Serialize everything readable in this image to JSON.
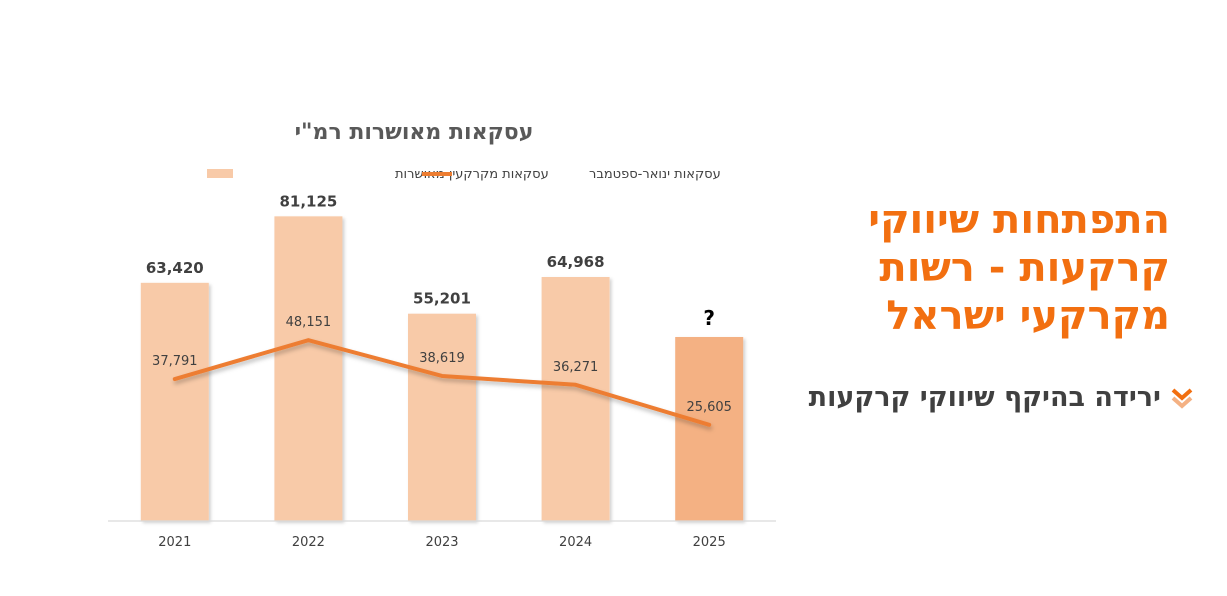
{
  "chart_data": {
    "type": "bar",
    "title": "עסקאות מאושרות רמ\"י",
    "categories": [
      "2021",
      "2022",
      "2023",
      "2024",
      "2025"
    ],
    "series": [
      {
        "name": "עסקאות מקרקעין מאושרות",
        "type": "bar",
        "values": [
          63420,
          81125,
          55201,
          64968,
          null
        ],
        "labels": [
          "63,420",
          "81,125",
          "55,201",
          "64,968",
          "?"
        ],
        "color": "#f8caa8",
        "highlight_color": "#f4b183"
      },
      {
        "name": "עסקאות ינואר-ספטמבר",
        "type": "line",
        "values": [
          37791,
          48151,
          38619,
          36271,
          25605
        ],
        "labels": [
          "37,791",
          "48,151",
          "38,619",
          "36,271",
          "25,605"
        ],
        "color": "#ed7d31"
      }
    ],
    "placeholder_bar_value": 49000,
    "ylim": [
      0,
      90000
    ],
    "grid": false,
    "legend_position": "top"
  },
  "side": {
    "headline_lines": [
      "התפתחות שיווקי",
      "קרקעות - רשות",
      "מקרקעי ישראל"
    ],
    "bullet_text": "ירידה בהיקף שיווקי קרקעות",
    "bullet_icon": "double-chevron-down-icon",
    "accent_color": "#f26f10"
  }
}
